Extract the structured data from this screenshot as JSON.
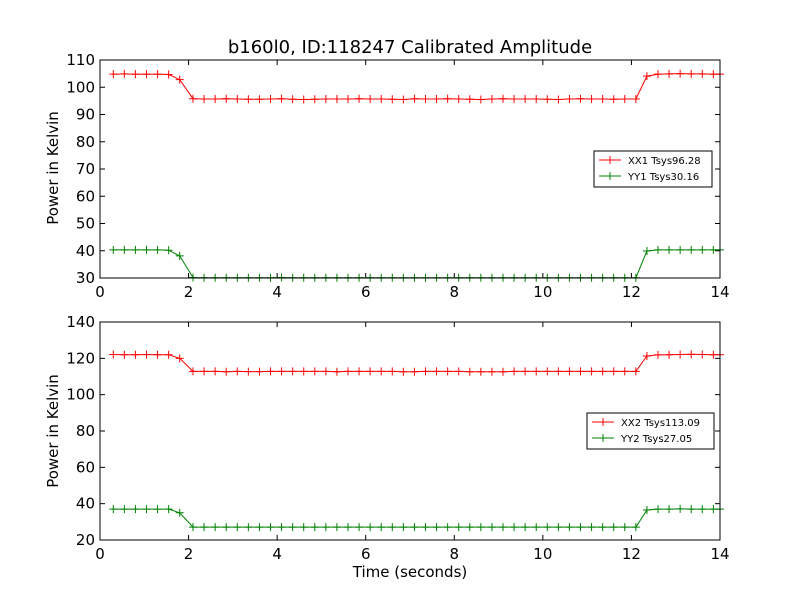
{
  "chart_data": [
    {
      "type": "line",
      "title": "b160l0, ID:118247 Calibrated Amplitude",
      "xlabel": "",
      "ylabel": "Power in Kelvin",
      "xlim": [
        0,
        14
      ],
      "ylim": [
        30,
        110
      ],
      "xticks": [
        "0",
        "2",
        "4",
        "6",
        "8",
        "10",
        "12",
        "14"
      ],
      "yticks": [
        "30",
        "40",
        "50",
        "60",
        "70",
        "80",
        "90",
        "100",
        "110"
      ],
      "grid": false,
      "legend_position": "right",
      "x": [
        0.3,
        0.55,
        0.8,
        1.05,
        1.3,
        1.55,
        1.8,
        2.1,
        2.35,
        2.6,
        2.85,
        3.1,
        3.35,
        3.6,
        3.85,
        4.1,
        4.35,
        4.6,
        4.85,
        5.1,
        5.35,
        5.6,
        5.85,
        6.1,
        6.35,
        6.6,
        6.85,
        7.1,
        7.35,
        7.6,
        7.85,
        8.1,
        8.35,
        8.6,
        8.85,
        9.1,
        9.35,
        9.6,
        9.85,
        10.1,
        10.35,
        10.6,
        10.85,
        11.1,
        11.35,
        11.6,
        11.85,
        12.1,
        12.35,
        12.6,
        12.85,
        13.1,
        13.35,
        13.6,
        13.85,
        14.0
      ],
      "series": [
        {
          "name": "XX1 Tsys96.28",
          "color": "#ff0000",
          "values": [
            104.8,
            104.9,
            104.8,
            104.8,
            104.8,
            104.7,
            102.8,
            95.8,
            95.7,
            95.7,
            95.8,
            95.7,
            95.6,
            95.6,
            95.7,
            95.8,
            95.6,
            95.5,
            95.6,
            95.7,
            95.7,
            95.7,
            95.8,
            95.7,
            95.7,
            95.6,
            95.5,
            95.8,
            95.7,
            95.7,
            95.8,
            95.7,
            95.6,
            95.5,
            95.7,
            95.8,
            95.7,
            95.7,
            95.7,
            95.6,
            95.5,
            95.7,
            95.8,
            95.7,
            95.7,
            95.6,
            95.7,
            95.7,
            104.1,
            104.8,
            104.9,
            105.0,
            104.9,
            104.9,
            104.8,
            104.8
          ]
        },
        {
          "name": "YY1 Tsys30.16",
          "color": "#008000",
          "values": [
            40.3,
            40.3,
            40.3,
            40.3,
            40.3,
            40.2,
            38.1,
            30.2,
            30.1,
            30.1,
            30.1,
            30.1,
            30.1,
            30.1,
            30.1,
            30.2,
            30.1,
            30.1,
            30.1,
            30.1,
            30.1,
            30.1,
            30.1,
            30.1,
            30.1,
            30.1,
            30.1,
            30.1,
            30.1,
            30.1,
            30.1,
            30.1,
            30.1,
            30.1,
            30.1,
            30.1,
            30.1,
            30.1,
            30.1,
            30.1,
            30.1,
            30.1,
            30.1,
            30.1,
            30.1,
            30.1,
            30.1,
            30.1,
            39.9,
            40.3,
            40.3,
            40.3,
            40.3,
            40.3,
            40.3,
            40.3
          ]
        }
      ]
    },
    {
      "type": "line",
      "title": "",
      "xlabel": "Time (seconds)",
      "ylabel": "Power in Kelvin",
      "xlim": [
        0,
        14
      ],
      "ylim": [
        20,
        140
      ],
      "xticks": [
        "0",
        "2",
        "4",
        "6",
        "8",
        "10",
        "12",
        "14"
      ],
      "yticks": [
        "20",
        "40",
        "60",
        "80",
        "100",
        "120",
        "140"
      ],
      "grid": false,
      "legend_position": "right",
      "x": [
        0.3,
        0.55,
        0.8,
        1.05,
        1.3,
        1.55,
        1.8,
        2.1,
        2.35,
        2.6,
        2.85,
        3.1,
        3.35,
        3.6,
        3.85,
        4.1,
        4.35,
        4.6,
        4.85,
        5.1,
        5.35,
        5.6,
        5.85,
        6.1,
        6.35,
        6.6,
        6.85,
        7.1,
        7.35,
        7.6,
        7.85,
        8.1,
        8.35,
        8.6,
        8.85,
        9.1,
        9.35,
        9.6,
        9.85,
        10.1,
        10.35,
        10.6,
        10.85,
        11.1,
        11.35,
        11.6,
        11.85,
        12.1,
        12.35,
        12.6,
        12.85,
        13.1,
        13.35,
        13.6,
        13.85,
        14.0
      ],
      "series": [
        {
          "name": "XX2 Tsys113.09",
          "color": "#ff0000",
          "values": [
            122.1,
            122.0,
            122.0,
            122.1,
            122.0,
            122.0,
            120.0,
            112.8,
            112.8,
            112.8,
            112.6,
            112.8,
            112.7,
            112.7,
            112.8,
            112.8,
            112.8,
            112.8,
            112.8,
            112.8,
            112.6,
            112.8,
            112.8,
            112.8,
            112.8,
            112.8,
            112.6,
            112.6,
            112.8,
            112.8,
            112.8,
            112.8,
            112.6,
            112.6,
            112.6,
            112.6,
            112.8,
            112.8,
            112.8,
            112.8,
            112.8,
            112.8,
            112.8,
            112.8,
            112.8,
            112.8,
            112.8,
            112.8,
            121.3,
            121.9,
            122.0,
            122.1,
            122.2,
            122.1,
            122.0,
            122.0
          ]
        },
        {
          "name": "YY2 Tsys27.05",
          "color": "#008000",
          "values": [
            37.0,
            37.0,
            37.0,
            37.0,
            37.0,
            37.0,
            35.0,
            27.1,
            27.1,
            27.1,
            27.1,
            27.1,
            27.1,
            27.1,
            27.1,
            27.1,
            27.1,
            27.1,
            27.1,
            27.1,
            27.1,
            27.1,
            27.1,
            27.1,
            27.1,
            27.1,
            27.1,
            27.1,
            27.1,
            27.1,
            27.1,
            27.1,
            27.1,
            27.1,
            27.1,
            27.1,
            27.1,
            27.1,
            27.1,
            27.1,
            27.1,
            27.1,
            27.1,
            27.1,
            27.1,
            27.1,
            27.1,
            27.1,
            36.5,
            37.0,
            37.0,
            37.1,
            37.0,
            37.0,
            37.0,
            37.0
          ]
        }
      ]
    }
  ]
}
